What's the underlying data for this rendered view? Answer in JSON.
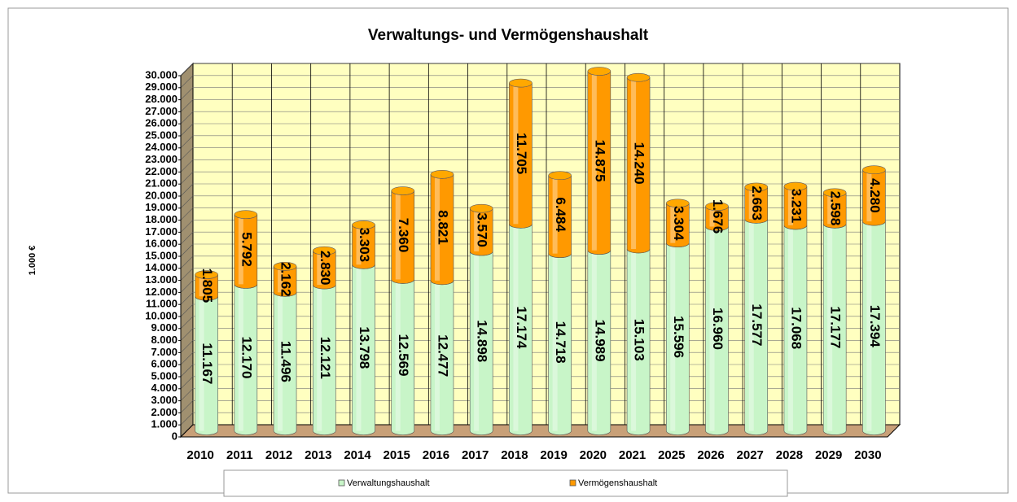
{
  "chart_data": {
    "type": "stacked-bar",
    "title": "Verwaltungs- und Vermögenshaushalt",
    "y_label": "1.000 €",
    "categories": [
      "2010",
      "2011",
      "2012",
      "2013",
      "2014",
      "2015",
      "2016",
      "2017",
      "2018",
      "2019",
      "2020",
      "2021",
      "2025",
      "2026",
      "2027",
      "2028",
      "2029",
      "2030"
    ],
    "series": [
      {
        "name": "Verwaltungshaushalt",
        "color": "#c8f5c8",
        "values": [
          11167,
          12170,
          11496,
          12121,
          13798,
          12569,
          12477,
          14898,
          17174,
          14718,
          14989,
          15103,
          15596,
          16960,
          17577,
          17068,
          17177,
          17394
        ],
        "value_labels": [
          "11.167",
          "12.170",
          "11.496",
          "12.121",
          "13.798",
          "12.569",
          "12.477",
          "14.898",
          "17.174",
          "14.718",
          "14.989",
          "15.103",
          "15.596",
          "16.960",
          "17.577",
          "17.068",
          "17.177",
          "17.394"
        ]
      },
      {
        "name": "Vermögenshaushalt",
        "color": "#ff9900",
        "values": [
          1805,
          5792,
          2162,
          2830,
          3303,
          7360,
          8821,
          3570,
          11705,
          6484,
          14875,
          14240,
          3304,
          1676,
          2663,
          3231,
          2598,
          4280
        ],
        "value_labels": [
          "1.805",
          "5.792",
          "2.162",
          "2.830",
          "3.303",
          "7.360",
          "8.821",
          "3.570",
          "11.705",
          "6.484",
          "14.875",
          "14.240",
          "3.304",
          "1.676",
          "2.663",
          "3.231",
          "2.598",
          "4.280"
        ]
      }
    ],
    "ylim": [
      0,
      30000
    ],
    "yticks": [
      0,
      {
        "value": 1000,
        "label": "1.000"
      },
      {
        "value": 2000,
        "label": "2.000"
      },
      {
        "value": 3000,
        "label": "3.000"
      },
      {
        "value": 4000,
        "label": "4.000"
      },
      {
        "value": 5000,
        "label": "5.000"
      },
      {
        "value": 6000,
        "label": "6.000"
      },
      {
        "value": 7000,
        "label": "7.000"
      },
      {
        "value": 8000,
        "label": "8.000"
      },
      {
        "value": 9000,
        "label": "9.000"
      },
      {
        "value": 10000,
        "label": "10.000"
      },
      {
        "value": 11000,
        "label": "11.000"
      },
      {
        "value": 12000,
        "label": "12.000"
      },
      {
        "value": 13000,
        "label": "13.000"
      },
      {
        "value": 14000,
        "label": "14.000"
      },
      {
        "value": 15000,
        "label": "15.000"
      },
      {
        "value": 16000,
        "label": "16.000"
      },
      {
        "value": 17000,
        "label": "17.000"
      },
      {
        "value": 18000,
        "label": "18.000"
      },
      {
        "value": 19000,
        "label": "19.000"
      },
      {
        "value": 20000,
        "label": "20.000"
      },
      {
        "value": 21000,
        "label": "21.000"
      },
      {
        "value": 22000,
        "label": "22.000"
      },
      {
        "value": 23000,
        "label": "23.000"
      },
      {
        "value": 24000,
        "label": "24.000"
      },
      {
        "value": 25000,
        "label": "25.000"
      },
      {
        "value": 26000,
        "label": "26.000"
      },
      {
        "value": 27000,
        "label": "27.000"
      },
      {
        "value": 28000,
        "label": "28.000"
      },
      {
        "value": 29000,
        "label": "29.000"
      },
      {
        "value": 30000,
        "label": "30.000"
      }
    ],
    "grid": true,
    "legend": "bottom"
  }
}
